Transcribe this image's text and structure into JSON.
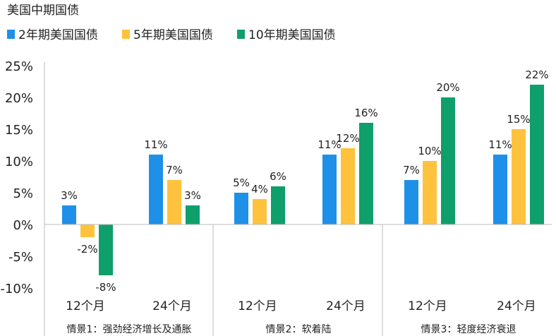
{
  "chart_data": {
    "type": "bar",
    "title": "美国中期国债",
    "legend_position": "top-left",
    "ylim": [
      -10,
      25
    ],
    "yticks": [
      25,
      20,
      15,
      10,
      5,
      0,
      -5,
      -10
    ],
    "ytick_labels": [
      "25%",
      "20%",
      "15%",
      "10%",
      "5%",
      "0%",
      "-5%",
      "-10%"
    ],
    "groups": [
      {
        "name": "情景1：强劲经济增长及通胀",
        "categories": [
          "12个月",
          "24个月"
        ]
      },
      {
        "name": "情景2：软着陆",
        "categories": [
          "12个月",
          "24个月"
        ]
      },
      {
        "name": "情景3：轻度经济衰退",
        "categories": [
          "12个月",
          "24个月"
        ]
      }
    ],
    "categories": [
      "12个月",
      "24个月",
      "12个月",
      "24个月",
      "12个月",
      "24个月"
    ],
    "series": [
      {
        "name": "2年期美国国债",
        "color": "#1E90E8",
        "values": [
          3,
          11,
          5,
          11,
          7,
          11
        ],
        "labels": [
          "3%",
          "11%",
          "5%",
          "11%",
          "7%",
          "11%"
        ]
      },
      {
        "name": "5年期美国国债",
        "color": "#FFC23D",
        "values": [
          -2,
          7,
          4,
          12,
          10,
          15
        ],
        "labels": [
          "-2%",
          "7%",
          "4%",
          "12%",
          "10%",
          "15%"
        ]
      },
      {
        "name": "10年期美国国债",
        "color": "#0E9F6A",
        "values": [
          -8,
          3,
          6,
          16,
          20,
          22
        ],
        "labels": [
          "-8%",
          "3%",
          "6%",
          "16%",
          "20%",
          "22%"
        ]
      }
    ],
    "grid": false
  }
}
